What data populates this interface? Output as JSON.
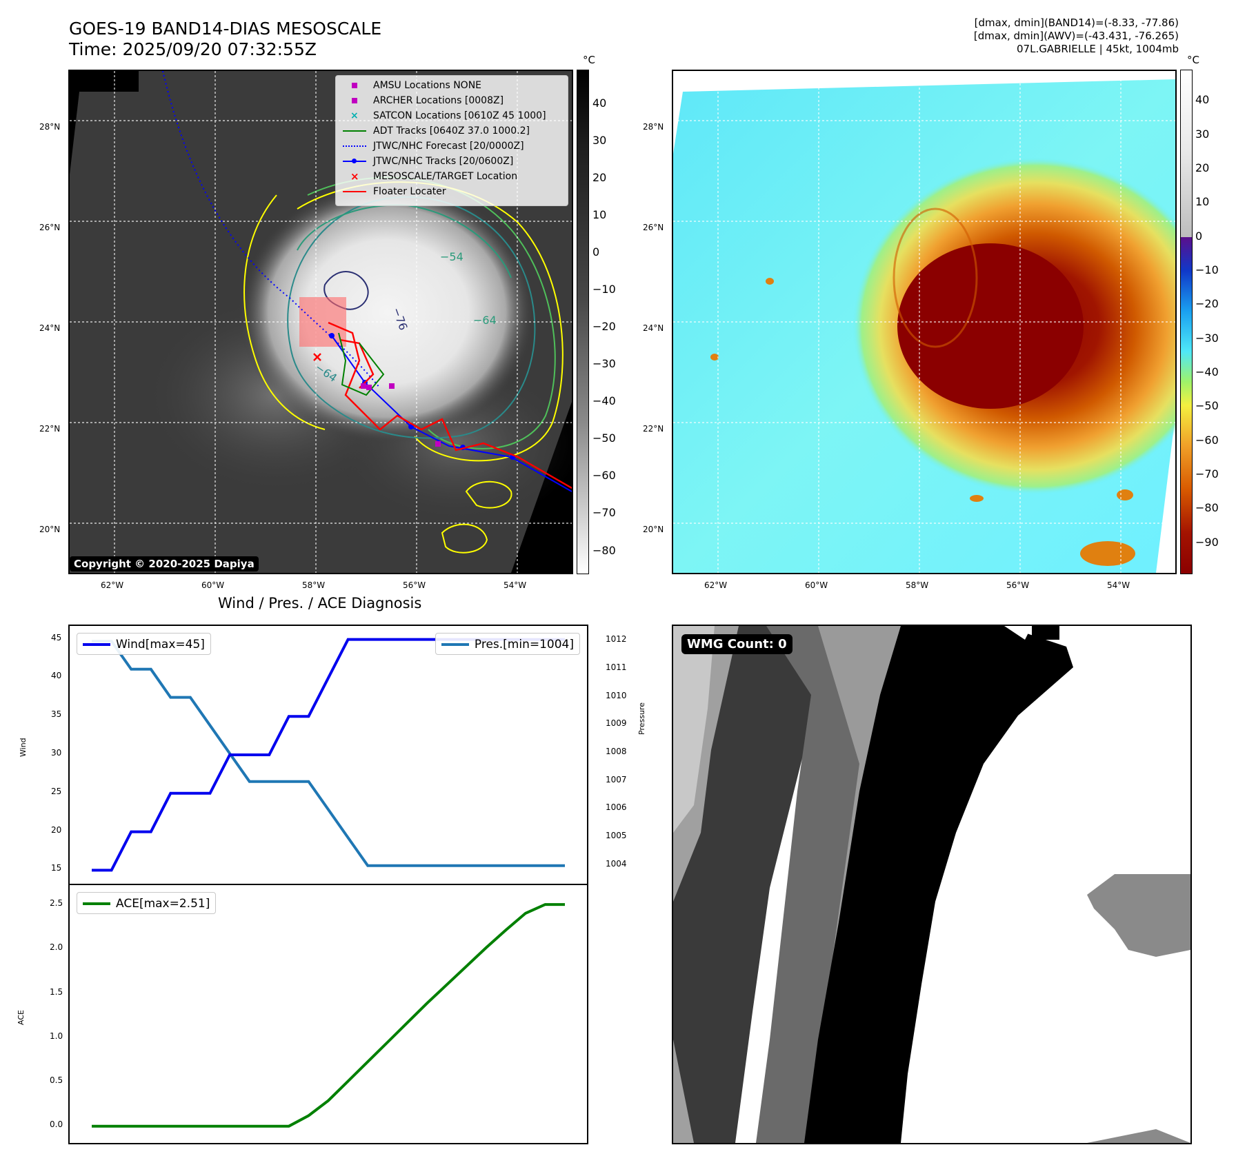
{
  "header": {
    "title_line1": "GOES-19 BAND14-DIAS MESOSCALE",
    "title_line2": "Time: 2025/09/20 07:32:55Z",
    "info_line1": "[dmax, dmin](BAND14)=(-8.33, -77.86)",
    "info_line2": "[dmax, dmin](AWV)=(-43.431, -76.265)",
    "info_line3": "07L.GABRIELLE | 45kt, 1004mb"
  },
  "map_axes": {
    "lat_labels": [
      "28°N",
      "26°N",
      "24°N",
      "22°N",
      "20°N"
    ],
    "lon_labels": [
      "62°W",
      "60°W",
      "58°W",
      "56°W",
      "54°W"
    ]
  },
  "colorbar_ir": {
    "unit": "°C",
    "ticks": [
      "40",
      "30",
      "20",
      "10",
      "0",
      "−10",
      "−20",
      "−30",
      "−40",
      "−50",
      "−60",
      "−70",
      "−80"
    ]
  },
  "colorbar_awv": {
    "unit": "°C",
    "ticks": [
      "40",
      "30",
      "20",
      "10",
      "0",
      "−10",
      "−20",
      "−30",
      "−40",
      "−50",
      "−60",
      "−70",
      "−80",
      "−90"
    ]
  },
  "map_legend": {
    "amsu": "AMSU Locations NONE",
    "archer": "ARCHER Locations [0008Z]",
    "satcon": "SATCON Locations [0610Z 45 1000]",
    "adt": "ADT Tracks [0640Z 37.0 1000.2]",
    "forecast": "JTWC/NHC Forecast [20/0000Z]",
    "tracks": "JTWC/NHC Tracks [20/0600Z]",
    "target": "MESOSCALE/TARGET Location",
    "floater": "Floater Locater"
  },
  "contour_labels": [
    "−54",
    "−64",
    "−76",
    "−64"
  ],
  "copyright": "Copyright © 2020-2025 Dapiya",
  "wmg": {
    "label": "WMG Count: 0"
  },
  "colors": {
    "wind": "#0000ee",
    "pressure": "#1f77b4",
    "ace": "#008000",
    "floater": "#ff0000",
    "forecast": "#0000ff",
    "contour_yellow": "#ffff00",
    "contour_green": "#4fc05a",
    "contour_teal": "#2a8a8a",
    "contour_navy": "#2a2f72"
  },
  "chart_data": [
    {
      "type": "line",
      "title": "Wind / Pres. / ACE Diagnosis",
      "ylabel": "Wind",
      "ylabel_right": "Pressure",
      "ylim": [
        14.5,
        45.5
      ],
      "ylim_right": [
        1003.7,
        1012.2
      ],
      "yticks": [
        "45",
        "40",
        "35",
        "30",
        "25",
        "20",
        "15"
      ],
      "yticks_right": [
        "1012",
        "1011",
        "1010",
        "1009",
        "1008",
        "1007",
        "1006",
        "1005",
        "1004"
      ],
      "x": [
        0,
        1,
        2,
        3,
        4,
        5,
        6,
        7,
        8,
        9,
        10,
        11,
        12,
        13,
        14,
        15,
        16,
        17,
        18,
        19,
        20,
        21,
        22,
        23,
        24
      ],
      "series": [
        {
          "name": "Wind[max=45]",
          "axis": "left",
          "values": [
            15,
            15,
            20,
            20,
            25,
            25,
            25,
            30,
            30,
            30,
            35,
            35,
            40,
            45,
            45,
            45,
            45,
            45,
            45,
            45,
            45,
            45,
            45,
            45,
            45
          ]
        },
        {
          "name": "Pres.[min=1004]",
          "axis": "right",
          "values": [
            1012,
            1012,
            1011,
            1011,
            1010,
            1010,
            1009,
            1008,
            1007,
            1007,
            1007,
            1007,
            1006,
            1005,
            1004,
            1004,
            1004,
            1004,
            1004,
            1004,
            1004,
            1004,
            1004,
            1004,
            1004
          ]
        }
      ]
    },
    {
      "type": "line",
      "ylabel": "ACE",
      "ylim": [
        -0.08,
        2.62
      ],
      "yticks": [
        "2.5",
        "2.0",
        "1.5",
        "1.0",
        "0.5",
        "0.0"
      ],
      "x": [
        0,
        1,
        2,
        3,
        4,
        5,
        6,
        7,
        8,
        9,
        10,
        11,
        12,
        13,
        14,
        15,
        16,
        17,
        18,
        19,
        20,
        21,
        22,
        23,
        24
      ],
      "series": [
        {
          "name": "ACE[max=2.51]",
          "values": [
            0,
            0,
            0,
            0,
            0,
            0,
            0,
            0,
            0,
            0,
            0,
            0.12,
            0.29,
            0.51,
            0.73,
            0.95,
            1.17,
            1.39,
            1.6,
            1.81,
            2.02,
            2.22,
            2.41,
            2.51,
            2.51
          ]
        }
      ]
    }
  ]
}
